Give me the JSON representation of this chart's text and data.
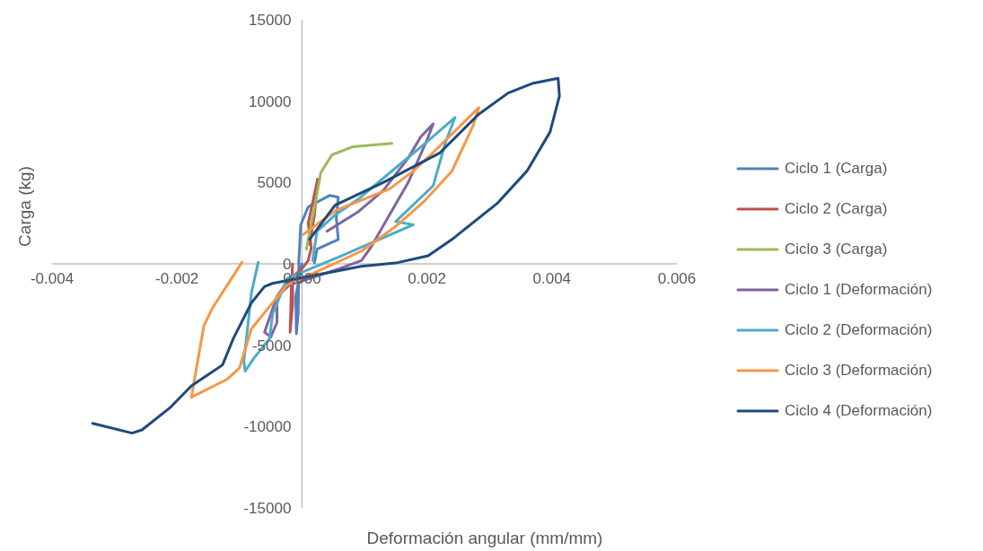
{
  "chart_data": {
    "type": "line",
    "xlabel": "Deformación angular (mm/mm)",
    "ylabel": "Carga (kg)",
    "xlim": [
      -0.004,
      0.006
    ],
    "xticks": [
      {
        "value": -0.004,
        "label": "-0.004"
      },
      {
        "value": -0.002,
        "label": "-0.002"
      },
      {
        "value": 0,
        "label": "0.000"
      },
      {
        "value": 0.002,
        "label": "0.002"
      },
      {
        "value": 0.004,
        "label": "0.004"
      },
      {
        "value": 0.006,
        "label": "0.006"
      }
    ],
    "ylim": [
      -15000,
      15000
    ],
    "yticks": [
      -15000,
      -10000,
      -5000,
      0,
      5000,
      10000,
      15000
    ],
    "grid": false,
    "legend": "right",
    "marker": "none",
    "line_style": "solid",
    "series": [
      {
        "name": "Ciclo 1 (Carga)",
        "color": "#4f81bd",
        "x": [
          0,
          -0.0001,
          -9e-05,
          -6e-05,
          -5e-05,
          -2e-05,
          0.0001,
          0.00044,
          0.00058,
          0.00055,
          0.00058,
          0.00024,
          0.0002
        ],
        "values": [
          0,
          -2000,
          -4300,
          -3000,
          200,
          2400,
          3500,
          4200,
          4100,
          2800,
          1500,
          900,
          50
        ]
      },
      {
        "name": "Ciclo 2 (Carga)",
        "color": "#c0504d",
        "x": [
          -0.00015,
          -0.00017,
          -0.00019,
          -0.00015,
          -0.00015,
          0,
          0.0001,
          0.00015,
          0.0001,
          0.00025,
          0.0002,
          0.00012
        ],
        "values": [
          0,
          -1500,
          -4200,
          -2500,
          -800,
          -300,
          200,
          1000,
          2500,
          5200,
          3000,
          1200
        ]
      },
      {
        "name": "Ciclo 3 (Carga)",
        "color": "#9bbb59",
        "x": [
          7e-05,
          0.00015,
          0.00025,
          0.0003,
          0.00048,
          0.00082,
          0.00144
        ],
        "values": [
          900,
          2500,
          4500,
          5600,
          6700,
          7200,
          7400
        ]
      },
      {
        "name": "Ciclo 1 (Deformación)",
        "color": "#8064a2",
        "x": [
          0,
          -0.0002,
          -0.0004,
          -0.0004,
          -0.0005,
          -0.0006,
          -0.0004,
          -0.0002,
          0.0002,
          0.0006,
          0.00095,
          0.0011,
          0.0014,
          0.0017,
          0.002,
          0.0021,
          0.0019,
          0.0017,
          0.0013,
          0.0009,
          0.0004
        ],
        "values": [
          -500,
          -900,
          -2000,
          -3600,
          -4500,
          -4200,
          -2000,
          -1300,
          -800,
          -300,
          200,
          1000,
          3000,
          5000,
          7600,
          8600,
          7800,
          6500,
          4500,
          3200,
          2000
        ]
      },
      {
        "name": "Ciclo 2 (Deformación)",
        "color": "#4bacc6",
        "x": [
          0.00017,
          0.00024,
          0.00053,
          0.00091,
          0.0015,
          0.00197,
          0.00245,
          0.0023,
          0.0021,
          0.0015,
          0.00178,
          0.00058,
          -0.00024,
          -0.00047,
          -0.00052,
          -0.00077,
          -0.00091,
          -0.00093,
          -0.00081,
          -0.0007
        ],
        "values": [
          200,
          2000,
          3000,
          4000,
          5900,
          7400,
          9000,
          7500,
          4800,
          2600,
          2400,
          400,
          -900,
          -3100,
          -4600,
          -5800,
          -6600,
          -6000,
          -1800,
          100
        ]
      },
      {
        "name": "Ciclo 3 (Deformación)",
        "color": "#f79646",
        "x": [
          2e-05,
          0.00055,
          0.0014,
          0.00178,
          0.00206,
          0.00283,
          0.00274,
          0.0024,
          0.00197,
          0.0015,
          0.00096,
          0.00034,
          -0.00024,
          -0.00081,
          -0.001,
          -0.0012,
          -0.00177,
          -0.00172,
          -0.00157,
          -0.00143,
          -0.00096
        ],
        "values": [
          1800,
          3300,
          4600,
          5700,
          6700,
          9600,
          8500,
          5700,
          3900,
          2300,
          800,
          -300,
          -1300,
          -4000,
          -6400,
          -7100,
          -8200,
          -7100,
          -3800,
          -2700,
          100
        ]
      },
      {
        "name": "Ciclo 4 (Deformación)",
        "color": "#1f497d",
        "x": [
          0.00012,
          0.00053,
          0.0013,
          0.0022,
          0.00283,
          0.0033,
          0.0037,
          0.0041,
          0.00412,
          0.00397,
          0.0036,
          0.00312,
          0.0024,
          0.00202,
          0.0015,
          0.00095,
          -0.00047,
          -0.0006,
          -0.00081,
          -0.0011,
          -0.00127,
          -0.00138,
          -0.00177,
          -0.0021,
          -0.00256,
          -0.00272,
          -0.00335
        ],
        "values": [
          1500,
          3600,
          5000,
          6800,
          9200,
          10500,
          11100,
          11400,
          10300,
          8100,
          5700,
          3700,
          1500,
          500,
          50,
          -150,
          -1200,
          -1400,
          -2400,
          -4600,
          -6200,
          -6500,
          -7500,
          -8800,
          -10200,
          -10400,
          -9800
        ]
      }
    ]
  }
}
